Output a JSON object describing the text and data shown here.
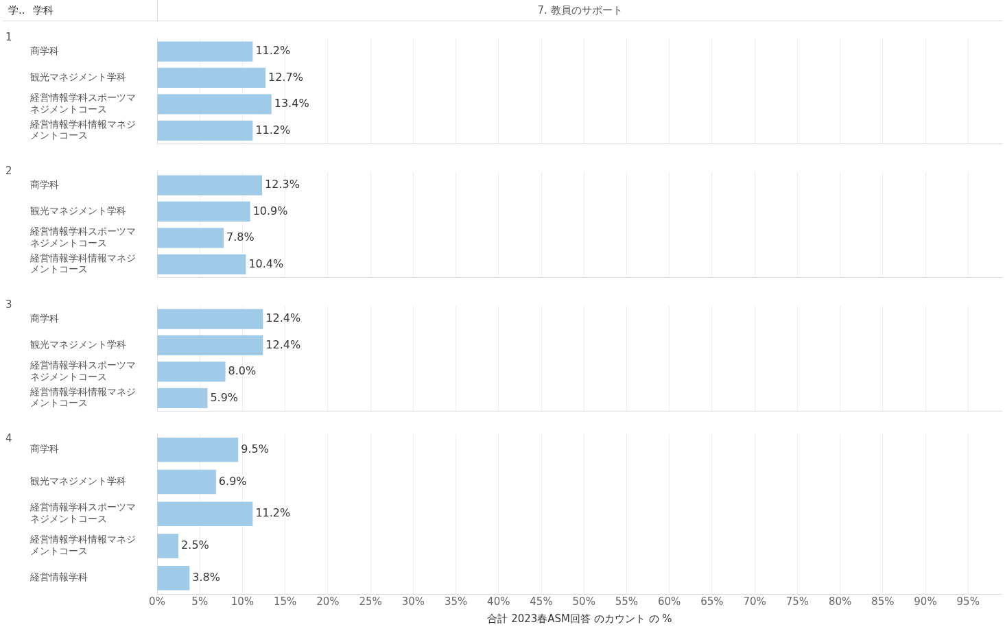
{
  "chart_data": [
    {
      "type": "bar",
      "orientation": "horizontal",
      "title": "1",
      "annotations": [
        "学..",
        "学科",
        "7. 教員のサポート"
      ],
      "categories": [
        "商学科",
        "観光マネジメント学科",
        "経営情報学科スポーツマネジメントコース",
        "経営情報学科情報マネジメントコース"
      ],
      "values": [
        11.2,
        12.7,
        13.4,
        11.2
      ],
      "value_labels": [
        "11.2%",
        "12.7%",
        "13.4%",
        "11.2%"
      ],
      "color": "#a0cbe8",
      "xlim": [
        0,
        99
      ],
      "xticks": [
        {
          "value": 0,
          "label": null
        },
        {
          "value": 5,
          "label": null
        },
        {
          "value": 10,
          "label": null
        },
        {
          "value": 15,
          "label": null
        },
        {
          "value": 20,
          "label": null
        },
        {
          "value": 25,
          "label": null
        },
        {
          "value": 30,
          "label": null
        },
        {
          "value": 35,
          "label": null
        },
        {
          "value": 40,
          "label": null
        },
        {
          "value": 45,
          "label": null
        },
        {
          "value": 50,
          "label": null
        },
        {
          "value": 55,
          "label": null
        },
        {
          "value": 60,
          "label": null
        },
        {
          "value": 65,
          "label": null
        },
        {
          "value": 70,
          "label": null
        },
        {
          "value": 75,
          "label": null
        },
        {
          "value": 80,
          "label": null
        },
        {
          "value": 85,
          "label": null
        },
        {
          "value": 90,
          "label": null
        },
        {
          "value": 95,
          "label": null
        }
      ],
      "grid": "x",
      "tick_labels": "y"
    },
    {
      "type": "bar",
      "orientation": "horizontal",
      "title": "2",
      "categories": [
        "商学科",
        "観光マネジメント学科",
        "経営情報学科スポーツマネジメントコース",
        "経営情報学科情報マネジメントコース"
      ],
      "values": [
        12.3,
        10.9,
        7.8,
        10.4
      ],
      "value_labels": [
        "12.3%",
        "10.9%",
        "7.8%",
        "10.4%"
      ],
      "color": "#a0cbe8",
      "xlim": [
        0,
        99
      ],
      "xticks": [
        {
          "value": 0,
          "label": null
        },
        {
          "value": 5,
          "label": null
        },
        {
          "value": 10,
          "label": null
        },
        {
          "value": 15,
          "label": null
        },
        {
          "value": 20,
          "label": null
        },
        {
          "value": 25,
          "label": null
        },
        {
          "value": 30,
          "label": null
        },
        {
          "value": 35,
          "label": null
        },
        {
          "value": 40,
          "label": null
        },
        {
          "value": 45,
          "label": null
        },
        {
          "value": 50,
          "label": null
        },
        {
          "value": 55,
          "label": null
        },
        {
          "value": 60,
          "label": null
        },
        {
          "value": 65,
          "label": null
        },
        {
          "value": 70,
          "label": null
        },
        {
          "value": 75,
          "label": null
        },
        {
          "value": 80,
          "label": null
        },
        {
          "value": 85,
          "label": null
        },
        {
          "value": 90,
          "label": null
        },
        {
          "value": 95,
          "label": null
        }
      ],
      "grid": "x",
      "tick_labels": "y"
    },
    {
      "type": "bar",
      "orientation": "horizontal",
      "title": "3",
      "categories": [
        "商学科",
        "観光マネジメント学科",
        "経営情報学科スポーツマネジメントコース",
        "経営情報学科情報マネジメントコース"
      ],
      "values": [
        12.4,
        12.4,
        8.0,
        5.9
      ],
      "value_labels": [
        "12.4%",
        "12.4%",
        "8.0%",
        "5.9%"
      ],
      "color": "#a0cbe8",
      "xlim": [
        0,
        99
      ],
      "xticks": [
        {
          "value": 0,
          "label": null
        },
        {
          "value": 5,
          "label": null
        },
        {
          "value": 10,
          "label": null
        },
        {
          "value": 15,
          "label": null
        },
        {
          "value": 20,
          "label": null
        },
        {
          "value": 25,
          "label": null
        },
        {
          "value": 30,
          "label": null
        },
        {
          "value": 35,
          "label": null
        },
        {
          "value": 40,
          "label": null
        },
        {
          "value": 45,
          "label": null
        },
        {
          "value": 50,
          "label": null
        },
        {
          "value": 55,
          "label": null
        },
        {
          "value": 60,
          "label": null
        },
        {
          "value": 65,
          "label": null
        },
        {
          "value": 70,
          "label": null
        },
        {
          "value": 75,
          "label": null
        },
        {
          "value": 80,
          "label": null
        },
        {
          "value": 85,
          "label": null
        },
        {
          "value": 90,
          "label": null
        },
        {
          "value": 95,
          "label": null
        }
      ],
      "grid": "x",
      "tick_labels": "y"
    },
    {
      "type": "bar",
      "orientation": "horizontal",
      "title": "4",
      "xlabel": "合計 2023春ASM回答 のカウント の %",
      "categories": [
        "商学科",
        "観光マネジメント学科",
        "経営情報学科スポーツマネジメントコース",
        "経営情報学科情報マネジメントコース",
        "経営情報学科"
      ],
      "values": [
        9.5,
        6.9,
        11.2,
        2.5,
        3.8
      ],
      "value_labels": [
        "9.5%",
        "6.9%",
        "11.2%",
        "2.5%",
        "3.8%"
      ],
      "color": "#a0cbe8",
      "xlim": [
        0,
        99
      ],
      "xticks": [
        {
          "value": 0,
          "label": "0%"
        },
        {
          "value": 5,
          "label": "5%"
        },
        {
          "value": 10,
          "label": "10%"
        },
        {
          "value": 15,
          "label": "15%"
        },
        {
          "value": 20,
          "label": "20%"
        },
        {
          "value": 25,
          "label": "25%"
        },
        {
          "value": 30,
          "label": "30%"
        },
        {
          "value": 35,
          "label": "35%"
        },
        {
          "value": 40,
          "label": "40%"
        },
        {
          "value": 45,
          "label": "45%"
        },
        {
          "value": 50,
          "label": "50%"
        },
        {
          "value": 55,
          "label": "55%"
        },
        {
          "value": 60,
          "label": "60%"
        },
        {
          "value": 65,
          "label": "65%"
        },
        {
          "value": 70,
          "label": "70%"
        },
        {
          "value": 75,
          "label": "75%"
        },
        {
          "value": 80,
          "label": "80%"
        },
        {
          "value": 85,
          "label": "85%"
        },
        {
          "value": 90,
          "label": "90%"
        },
        {
          "value": 95,
          "label": "95%"
        }
      ],
      "grid": "x"
    }
  ]
}
